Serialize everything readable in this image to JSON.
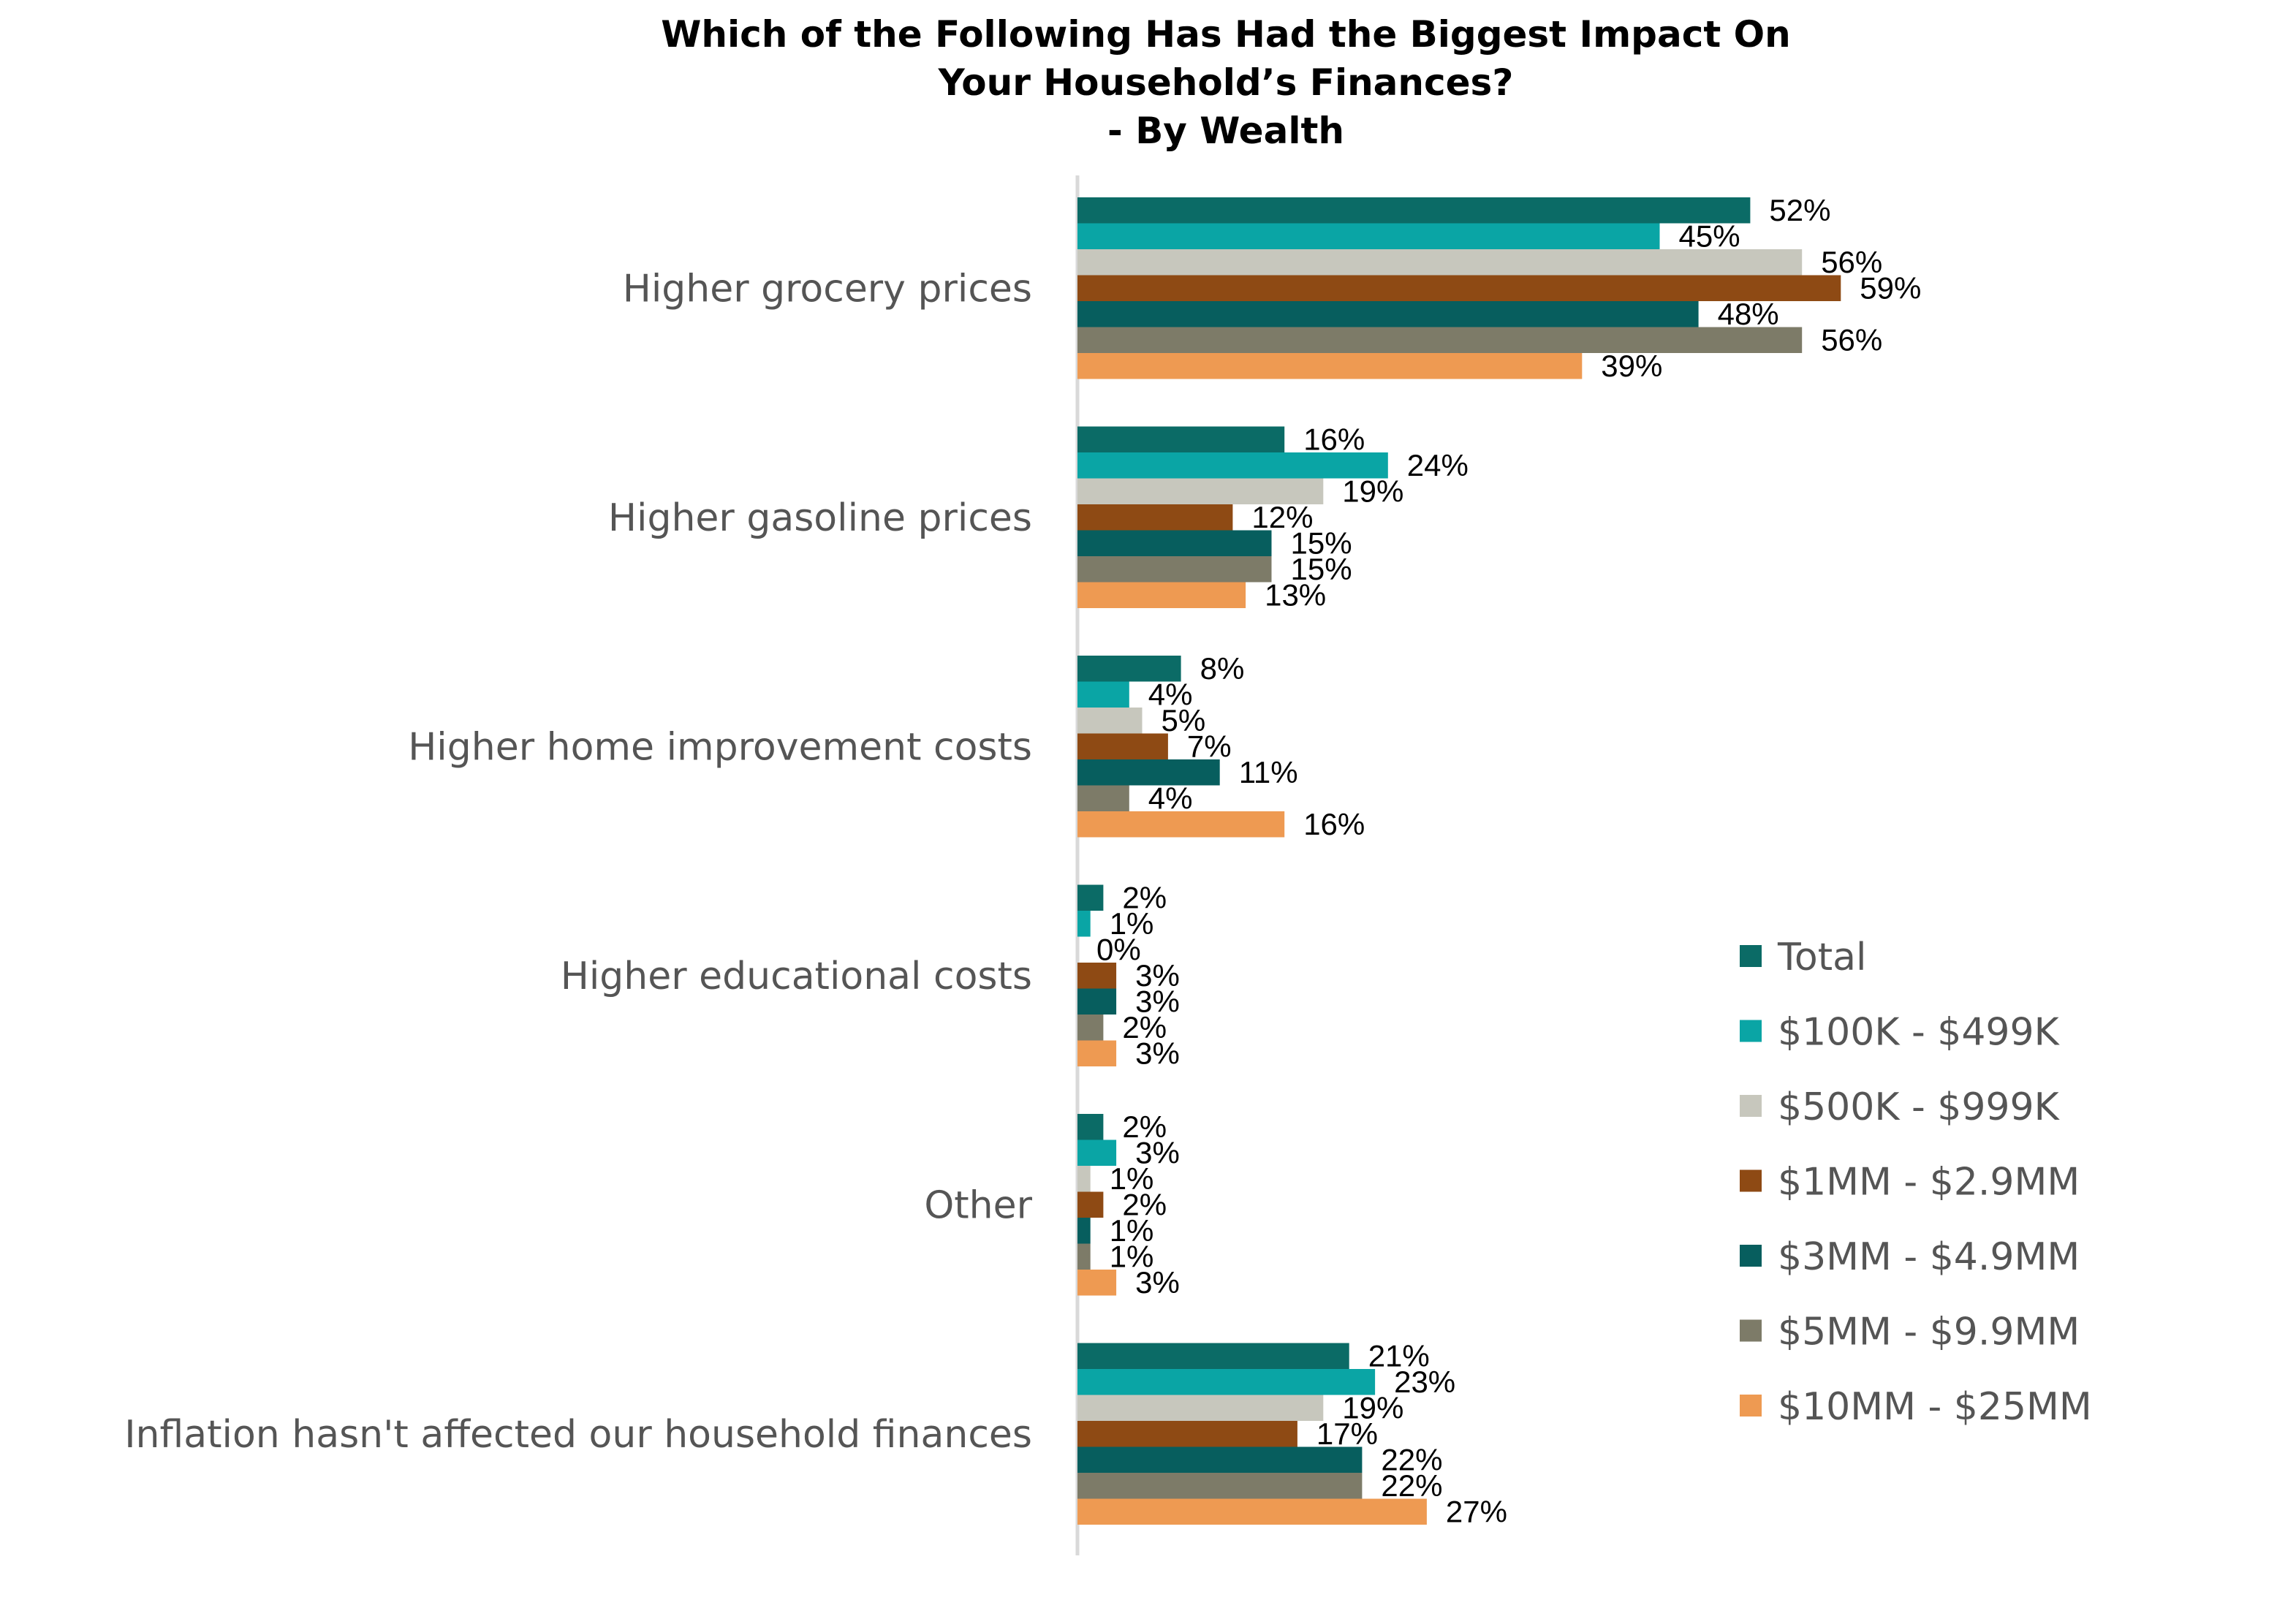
{
  "chart_data": {
    "type": "bar",
    "orientation": "horizontal",
    "title_lines": [
      "Which of the Following Has Had the Biggest Impact On",
      "Your Household’s Finances?",
      "- By Wealth"
    ],
    "categories": [
      "Higher grocery prices",
      "Higher gasoline prices",
      "Higher home improvement costs",
      "Higher educational costs",
      "Other",
      "Inflation hasn't affected our household finances"
    ],
    "series": [
      {
        "name": "Total",
        "color": "#0B6B66",
        "values": [
          52,
          16,
          8,
          2,
          2,
          21
        ]
      },
      {
        "name": "$100K - $499K",
        "color": "#0AA5A5",
        "values": [
          45,
          24,
          4,
          1,
          3,
          23
        ]
      },
      {
        "name": "$500K - $999K",
        "color": "#C7C7BD",
        "values": [
          56,
          19,
          5,
          0,
          1,
          19
        ]
      },
      {
        "name": "$1MM - $2.9MM",
        "color": "#8E4A14",
        "values": [
          59,
          12,
          7,
          3,
          2,
          17
        ]
      },
      {
        "name": "$3MM - $4.9MM",
        "color": "#075E5E",
        "values": [
          48,
          15,
          11,
          3,
          1,
          22
        ]
      },
      {
        "name": "$5MM - $9.9MM",
        "color": "#7D7B68",
        "values": [
          56,
          15,
          4,
          2,
          1,
          22
        ]
      },
      {
        "name": "$10MM - $25MM",
        "color": "#EE9A52",
        "values": [
          39,
          13,
          16,
          3,
          3,
          27
        ]
      }
    ],
    "value_suffix": "%",
    "xlim": [
      0,
      100
    ],
    "grid": false,
    "legend_position": "right"
  }
}
